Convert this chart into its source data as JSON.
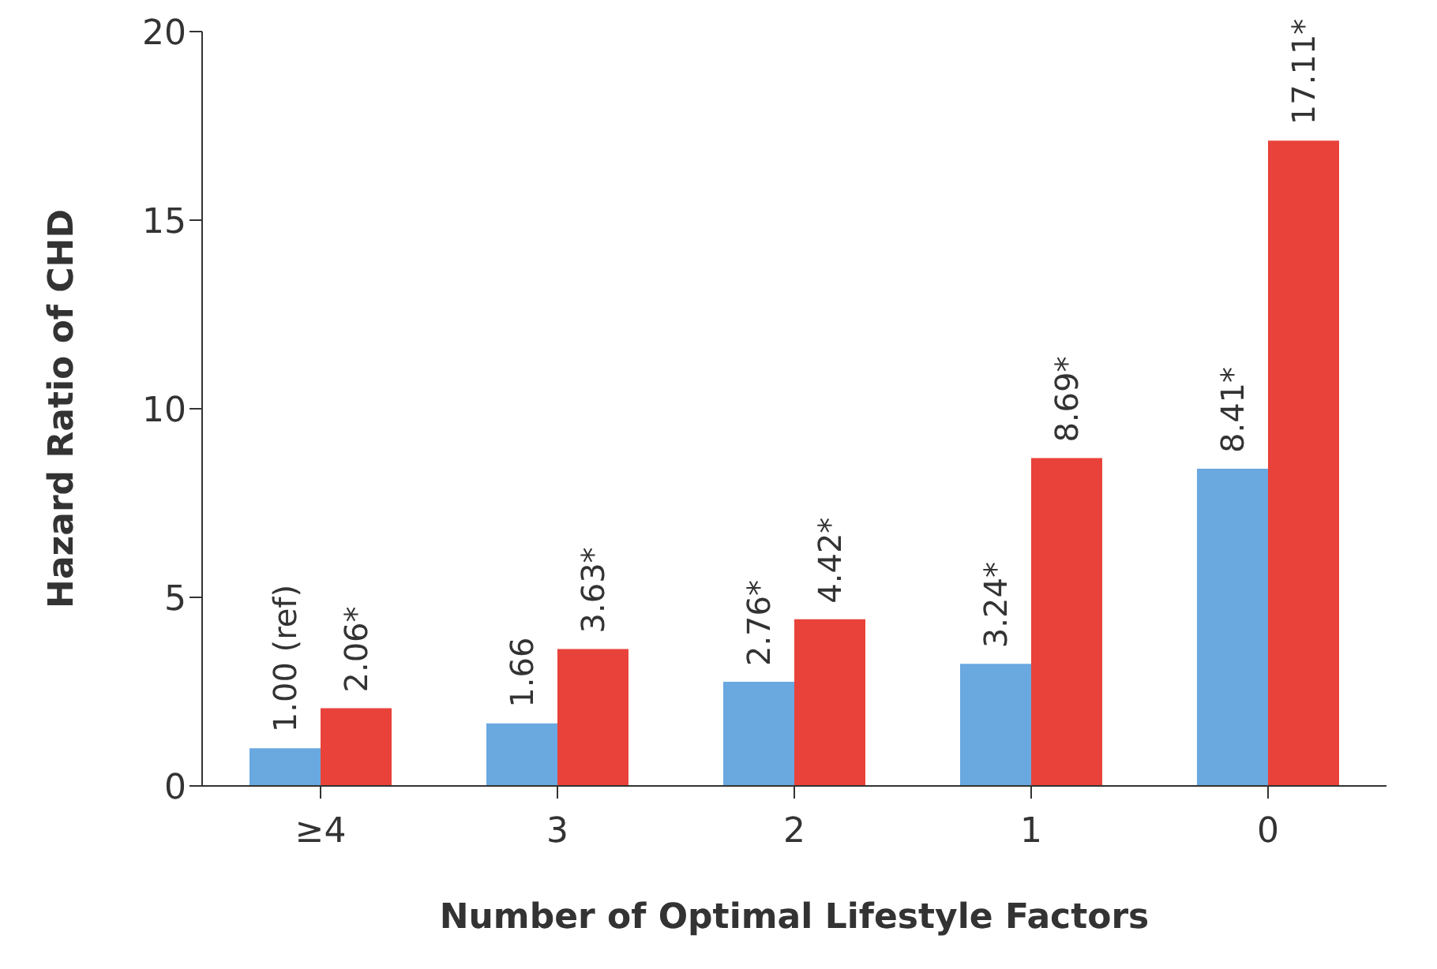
{
  "chart_data": {
    "type": "bar",
    "xlabel": "Number of Optimal Lifestyle Factors",
    "ylabel": "Hazard Ratio of CHD",
    "categories": [
      "≥4",
      "3",
      "2",
      "1",
      "0"
    ],
    "series": [
      {
        "color": "#6aa8e0",
        "values": [
          1.0,
          1.66,
          2.76,
          3.24,
          8.41
        ],
        "value_labels": [
          "1.00 (ref)",
          "1.66",
          "2.76*",
          "3.24*",
          "8.41*"
        ]
      },
      {
        "color": "#e8423a",
        "values": [
          2.06,
          3.63,
          4.42,
          8.69,
          17.11
        ],
        "value_labels": [
          "2.06*",
          "3.63*",
          "4.42*",
          "8.69*",
          "17.11*"
        ]
      }
    ],
    "ylim": [
      0,
      20
    ],
    "yticks": [
      0,
      5,
      10,
      15,
      20
    ],
    "grid": false,
    "legend": false
  }
}
